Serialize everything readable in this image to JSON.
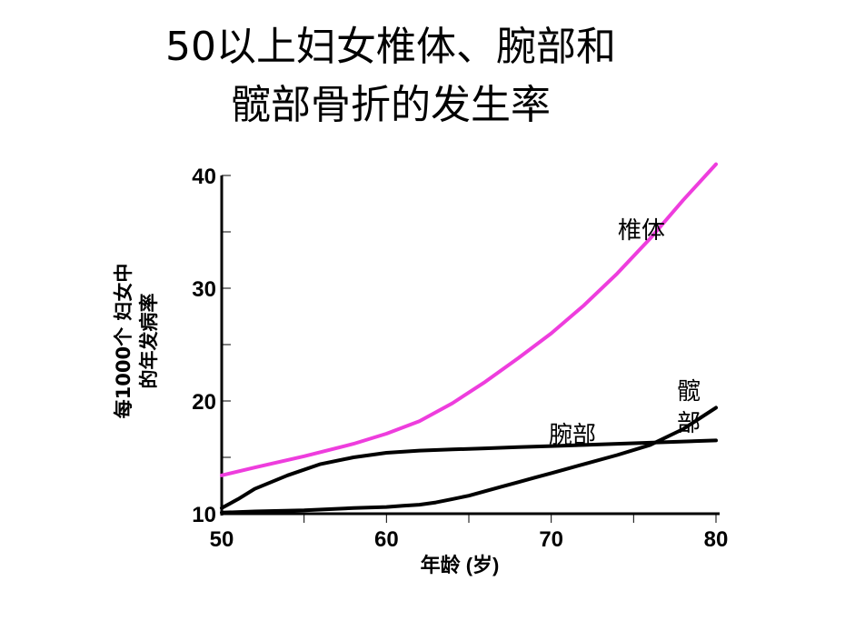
{
  "title_lines": [
    "50以上妇女椎体、腕部和",
    "髋部骨折的发生率"
  ],
  "chart_data": {
    "type": "line",
    "title": "50以上妇女椎体、腕部和髋部骨折的发生率",
    "xlabel": "年龄 (岁)",
    "ylabel_lines": [
      "每1000个 妇女中",
      "的年发病率"
    ],
    "xlim": [
      50,
      80
    ],
    "ylim": [
      10,
      40
    ],
    "xticks": [
      50,
      60,
      70,
      80
    ],
    "yticks": [
      10,
      20,
      30,
      40
    ],
    "grid": false,
    "series": [
      {
        "name": "椎体",
        "label_lines": [
          "椎体"
        ],
        "color": "#ee3ddd",
        "x": [
          50,
          52,
          55,
          58,
          60,
          62,
          64,
          66,
          68,
          70,
          72,
          74,
          76,
          78,
          80
        ],
        "y": [
          13.4,
          14.1,
          15.1,
          16.2,
          17.1,
          18.2,
          19.8,
          21.7,
          23.8,
          26.0,
          28.5,
          31.3,
          34.4,
          37.8,
          41.0
        ]
      },
      {
        "name": "腕部",
        "label_lines": [
          "腕部"
        ],
        "color": "#000000",
        "x": [
          50,
          51,
          52,
          54,
          56,
          58,
          60,
          62,
          64,
          66,
          68,
          70,
          72,
          74,
          76,
          78,
          80
        ],
        "y": [
          10.5,
          11.3,
          12.2,
          13.4,
          14.4,
          15.0,
          15.4,
          15.6,
          15.7,
          15.8,
          15.9,
          16.0,
          16.1,
          16.2,
          16.3,
          16.4,
          16.5
        ]
      },
      {
        "name": "髋部",
        "label_lines": [
          "髋",
          "部"
        ],
        "color": "#000000",
        "x": [
          50,
          52,
          55,
          58,
          60,
          61,
          62,
          63,
          64,
          65,
          66,
          67,
          68,
          69,
          70,
          71,
          72,
          74,
          76,
          78,
          80
        ],
        "y": [
          10.1,
          10.2,
          10.3,
          10.5,
          10.6,
          10.7,
          10.8,
          11.0,
          11.3,
          11.6,
          12.0,
          12.4,
          12.8,
          13.2,
          13.6,
          14.0,
          14.4,
          15.2,
          16.1,
          17.5,
          19.4
        ]
      }
    ]
  }
}
